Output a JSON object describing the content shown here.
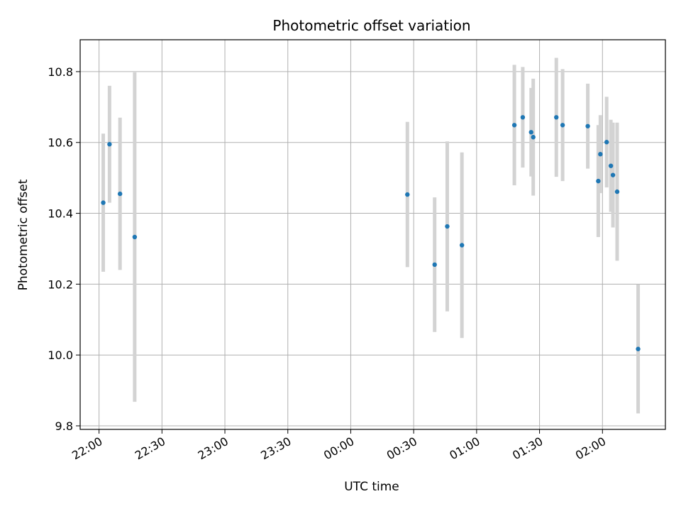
{
  "chart_data": {
    "type": "scatter",
    "title": "Photometric offset variation",
    "xlabel": "UTC time",
    "ylabel": "Photometric offset",
    "xlim": [
      "21:51",
      "02:30"
    ],
    "ylim": [
      9.79,
      10.89
    ],
    "grid": true,
    "x_tick_labels": [
      "22:00",
      "22:30",
      "23:00",
      "23:30",
      "00:00",
      "00:30",
      "01:00",
      "01:30",
      "02:00"
    ],
    "y_tick_labels": [
      "9.8",
      "10.0",
      "10.2",
      "10.4",
      "10.6",
      "10.8"
    ],
    "y_ticks": [
      9.8,
      10.0,
      10.2,
      10.4,
      10.6,
      10.8
    ],
    "point_color": "#1f77b4",
    "errorbar_color": "#d3d3d3",
    "points": [
      {
        "x": "22:02",
        "y": 10.43,
        "err": 0.195
      },
      {
        "x": "22:05",
        "y": 10.595,
        "err": 0.165
      },
      {
        "x": "22:10",
        "y": 10.455,
        "err": 0.215
      },
      {
        "x": "22:17",
        "y": 10.333,
        "err": 0.465
      },
      {
        "x": "00:27",
        "y": 10.453,
        "err": 0.205
      },
      {
        "x": "00:40",
        "y": 10.255,
        "err": 0.19
      },
      {
        "x": "00:46",
        "y": 10.363,
        "err": 0.24
      },
      {
        "x": "00:53",
        "y": 10.31,
        "err": 0.262
      },
      {
        "x": "01:18",
        "y": 10.649,
        "err": 0.17
      },
      {
        "x": "01:22",
        "y": 10.671,
        "err": 0.142
      },
      {
        "x": "01:26",
        "y": 10.629,
        "err": 0.125
      },
      {
        "x": "01:27",
        "y": 10.615,
        "err": 0.165
      },
      {
        "x": "01:38",
        "y": 10.671,
        "err": 0.168
      },
      {
        "x": "01:41",
        "y": 10.649,
        "err": 0.158
      },
      {
        "x": "01:53",
        "y": 10.646,
        "err": 0.12
      },
      {
        "x": "01:58",
        "y": 10.491,
        "err": 0.158
      },
      {
        "x": "01:59",
        "y": 10.567,
        "err": 0.11
      },
      {
        "x": "02:02",
        "y": 10.601,
        "err": 0.128
      },
      {
        "x": "02:04",
        "y": 10.534,
        "err": 0.13
      },
      {
        "x": "02:05",
        "y": 10.508,
        "err": 0.148
      },
      {
        "x": "02:07",
        "y": 10.461,
        "err": 0.195
      },
      {
        "x": "02:17",
        "y": 10.017,
        "err": 0.182
      }
    ]
  }
}
